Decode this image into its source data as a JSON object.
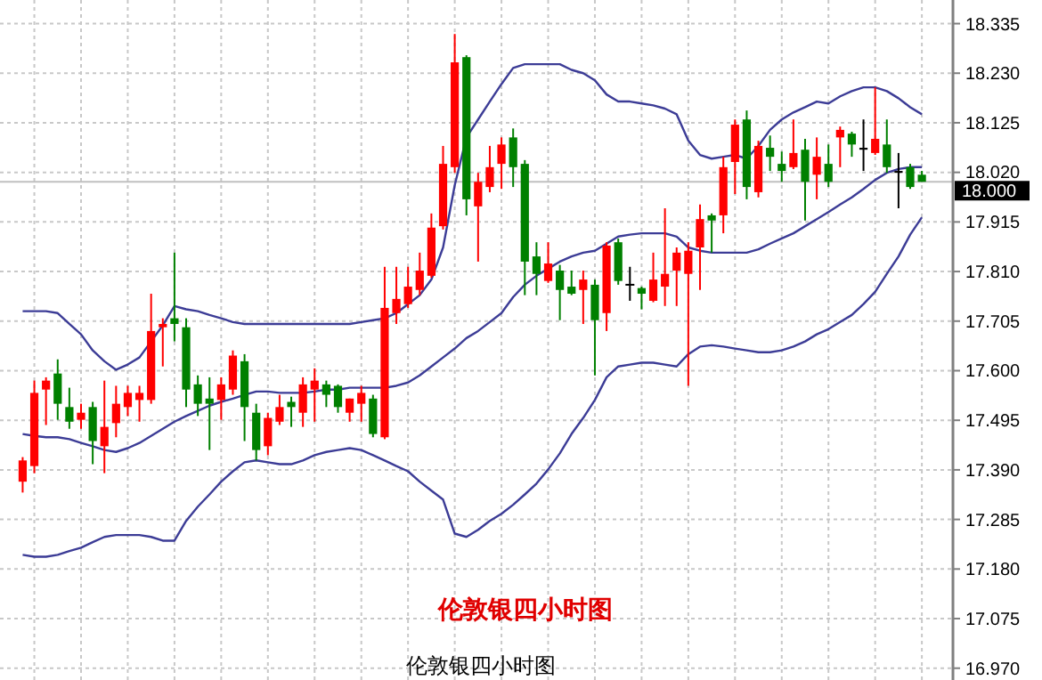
{
  "chart_data": {
    "type": "candlestick",
    "categories": [
      null,
      null,
      null,
      null,
      null,
      null,
      null,
      null,
      null,
      null,
      null,
      null,
      null,
      null,
      null,
      null,
      null,
      null,
      null,
      null,
      null,
      null,
      null,
      null,
      null,
      null,
      null,
      null,
      null,
      null,
      null,
      null,
      null,
      null,
      null,
      null,
      null,
      null,
      null,
      null,
      null,
      null,
      null,
      null,
      null,
      null,
      null,
      null,
      null,
      null,
      null,
      null,
      null,
      null,
      null,
      null,
      null,
      null,
      null,
      null,
      null,
      null,
      null,
      null,
      null,
      null,
      null,
      null,
      null,
      null,
      null,
      null,
      null,
      null,
      null,
      null,
      null,
      null
    ],
    "ohlc": [
      [
        17.365,
        17.417,
        17.342,
        17.41
      ],
      [
        17.398,
        17.579,
        17.383,
        17.553
      ],
      [
        17.56,
        17.586,
        17.485,
        17.579
      ],
      [
        17.594,
        17.624,
        17.496,
        17.53
      ],
      [
        17.523,
        17.564,
        17.477,
        17.492
      ],
      [
        17.496,
        17.53,
        17.477,
        17.511
      ],
      [
        17.523,
        17.534,
        17.402,
        17.451
      ],
      [
        17.44,
        17.579,
        17.383,
        17.481
      ],
      [
        17.489,
        17.568,
        17.459,
        17.53
      ],
      [
        17.523,
        17.568,
        17.504,
        17.553
      ],
      [
        17.538,
        17.568,
        17.492,
        17.553
      ],
      [
        17.538,
        17.763,
        17.53,
        17.684
      ],
      [
        17.692,
        17.711,
        17.609,
        17.699
      ],
      [
        17.711,
        17.85,
        17.662,
        17.699
      ],
      [
        17.692,
        17.711,
        17.523,
        17.56
      ],
      [
        17.571,
        17.59,
        17.504,
        17.53
      ],
      [
        17.541,
        17.586,
        17.432,
        17.53
      ],
      [
        17.538,
        17.586,
        17.496,
        17.571
      ],
      [
        17.56,
        17.643,
        17.549,
        17.632
      ],
      [
        17.62,
        17.635,
        17.451,
        17.523
      ],
      [
        17.511,
        17.53,
        17.41,
        17.432
      ],
      [
        17.44,
        17.511,
        17.421,
        17.5
      ],
      [
        17.492,
        17.549,
        17.485,
        17.523
      ],
      [
        17.534,
        17.545,
        17.481,
        17.523
      ],
      [
        17.511,
        17.586,
        17.481,
        17.571
      ],
      [
        17.56,
        17.605,
        17.492,
        17.579
      ],
      [
        17.571,
        17.579,
        17.523,
        17.549
      ],
      [
        17.568,
        17.571,
        17.511,
        17.523
      ],
      [
        17.511,
        17.541,
        17.492,
        17.541
      ],
      [
        17.53,
        17.568,
        17.492,
        17.553
      ],
      [
        17.541,
        17.549,
        17.459,
        17.466
      ],
      [
        17.459,
        17.82,
        17.455,
        17.733
      ],
      [
        17.722,
        17.82,
        17.699,
        17.752
      ],
      [
        17.741,
        17.82,
        17.733,
        17.778
      ],
      [
        17.771,
        17.85,
        17.76,
        17.812
      ],
      [
        17.801,
        17.933,
        17.797,
        17.903
      ],
      [
        17.906,
        18.076,
        17.899,
        18.038
      ],
      [
        18.031,
        18.313,
        18.019,
        18.253
      ],
      [
        18.264,
        18.268,
        17.929,
        17.963
      ],
      [
        17.948,
        18.019,
        17.831,
        18.0
      ],
      [
        17.989,
        18.076,
        17.978,
        18.031
      ],
      [
        18.038,
        18.094,
        17.985,
        18.079
      ],
      [
        18.094,
        18.113,
        17.989,
        18.031
      ],
      [
        18.038,
        18.046,
        17.76,
        17.831
      ],
      [
        17.842,
        17.872,
        17.76,
        17.805
      ],
      [
        17.79,
        17.872,
        17.786,
        17.827
      ],
      [
        17.812,
        17.824,
        17.707,
        17.771
      ],
      [
        17.778,
        17.812,
        17.76,
        17.763
      ],
      [
        17.771,
        17.812,
        17.699,
        17.793
      ],
      [
        17.782,
        17.793,
        17.59,
        17.707
      ],
      [
        17.722,
        17.872,
        17.684,
        17.865
      ],
      [
        17.872,
        17.88,
        17.782,
        17.79
      ],
      [
        17.782,
        17.82,
        17.748,
        17.782
      ],
      [
        17.775,
        17.778,
        17.73,
        17.763
      ],
      [
        17.748,
        17.85,
        17.745,
        17.793
      ],
      [
        17.778,
        17.944,
        17.737,
        17.805
      ],
      [
        17.812,
        17.861,
        17.737,
        17.85
      ],
      [
        17.805,
        17.872,
        17.568,
        17.854
      ],
      [
        17.861,
        17.952,
        17.771,
        17.921
      ],
      [
        17.929,
        17.933,
        17.85,
        17.918
      ],
      [
        17.929,
        18.053,
        17.891,
        18.031
      ],
      [
        18.042,
        18.132,
        17.974,
        18.121
      ],
      [
        18.132,
        18.151,
        17.963,
        17.989
      ],
      [
        17.978,
        18.087,
        17.967,
        18.076
      ],
      [
        18.072,
        18.098,
        18.023,
        18.053
      ],
      [
        18.038,
        18.064,
        18.0,
        18.023
      ],
      [
        18.031,
        18.132,
        18.027,
        18.061
      ],
      [
        18.068,
        18.091,
        17.918,
        18.0
      ],
      [
        18.015,
        18.094,
        17.963,
        18.053
      ],
      [
        18.038,
        18.079,
        17.989,
        18.0
      ],
      [
        18.094,
        18.117,
        18.031,
        18.11
      ],
      [
        18.102,
        18.106,
        18.053,
        18.079
      ],
      [
        18.072,
        18.132,
        18.023,
        18.068
      ],
      [
        18.061,
        18.2,
        18.057,
        18.091
      ],
      [
        18.079,
        18.132,
        18.019,
        18.031
      ],
      [
        18.023,
        18.061,
        17.944,
        18.019
      ],
      [
        18.031,
        18.038,
        17.985,
        17.989
      ],
      [
        18.015,
        18.023,
        18.0,
        18.0
      ]
    ],
    "colors": [
      "#ff0000",
      "#ff0000",
      "#ff0000",
      "#008000",
      "#008000",
      "#ff0000",
      "#008000",
      "#ff0000",
      "#ff0000",
      "#ff0000",
      "#ff0000",
      "#ff0000",
      "#ff0000",
      "#008000",
      "#008000",
      "#008000",
      "#008000",
      "#ff0000",
      "#ff0000",
      "#008000",
      "#008000",
      "#ff0000",
      "#ff0000",
      "#008000",
      "#ff0000",
      "#ff0000",
      "#008000",
      "#008000",
      "#ff0000",
      "#ff0000",
      "#008000",
      "#ff0000",
      "#ff0000",
      "#ff0000",
      "#ff0000",
      "#ff0000",
      "#ff0000",
      "#ff0000",
      "#008000",
      "#ff0000",
      "#ff0000",
      "#ff0000",
      "#008000",
      "#008000",
      "#008000",
      "#ff0000",
      "#008000",
      "#008000",
      "#ff0000",
      "#008000",
      "#ff0000",
      "#008000",
      "#000000",
      "#008000",
      "#ff0000",
      "#ff0000",
      "#ff0000",
      "#ff0000",
      "#ff0000",
      "#008000",
      "#ff0000",
      "#ff0000",
      "#008000",
      "#ff0000",
      "#008000",
      "#008000",
      "#ff0000",
      "#008000",
      "#ff0000",
      "#008000",
      "#ff0000",
      "#008000",
      "#000000",
      "#ff0000",
      "#008000",
      "#000000",
      "#008000",
      "#008000"
    ],
    "series": [
      {
        "type": "line",
        "color": "#3c3c96",
        "values": [
          17.726,
          17.726,
          17.726,
          17.722,
          17.699,
          17.677,
          17.643,
          17.62,
          17.602,
          17.613,
          17.628,
          17.662,
          17.696,
          17.737,
          17.73,
          17.726,
          17.718,
          17.711,
          17.703,
          17.699,
          17.699,
          17.699,
          17.699,
          17.699,
          17.699,
          17.699,
          17.699,
          17.699,
          17.699,
          17.703,
          17.707,
          17.711,
          17.722,
          17.741,
          17.76,
          17.793,
          17.861,
          17.993,
          18.094,
          18.132,
          18.17,
          18.207,
          18.241,
          18.249,
          18.249,
          18.249,
          18.249,
          18.237,
          18.23,
          18.215,
          18.185,
          18.17,
          18.17,
          18.166,
          18.162,
          18.155,
          18.143,
          18.087,
          18.057,
          18.049,
          18.053,
          18.057,
          18.049,
          18.076,
          18.11,
          18.132,
          18.147,
          18.158,
          18.17,
          18.166,
          18.181,
          18.192,
          18.2,
          18.2,
          18.192,
          18.177,
          18.158,
          18.143
        ]
      },
      {
        "type": "line",
        "color": "#3c3c96",
        "values": [
          17.466,
          17.462,
          17.459,
          17.459,
          17.455,
          17.447,
          17.44,
          17.432,
          17.428,
          17.436,
          17.447,
          17.462,
          17.477,
          17.492,
          17.504,
          17.515,
          17.526,
          17.534,
          17.541,
          17.549,
          17.556,
          17.556,
          17.553,
          17.553,
          17.553,
          17.556,
          17.56,
          17.56,
          17.564,
          17.564,
          17.564,
          17.564,
          17.568,
          17.575,
          17.59,
          17.609,
          17.628,
          17.647,
          17.669,
          17.684,
          17.703,
          17.722,
          17.756,
          17.782,
          17.801,
          17.816,
          17.831,
          17.842,
          17.85,
          17.854,
          17.869,
          17.884,
          17.888,
          17.891,
          17.891,
          17.891,
          17.884,
          17.861,
          17.854,
          17.85,
          17.85,
          17.85,
          17.85,
          17.857,
          17.869,
          17.88,
          17.891,
          17.906,
          17.921,
          17.936,
          17.952,
          17.967,
          17.985,
          18.004,
          18.019,
          18.027,
          18.031,
          18.031
        ]
      },
      {
        "type": "line",
        "color": "#3c3c96",
        "values": [
          17.21,
          17.206,
          17.206,
          17.21,
          17.218,
          17.225,
          17.237,
          17.248,
          17.252,
          17.252,
          17.252,
          17.248,
          17.24,
          17.24,
          17.282,
          17.312,
          17.338,
          17.365,
          17.387,
          17.406,
          17.41,
          17.406,
          17.402,
          17.402,
          17.41,
          17.421,
          17.428,
          17.432,
          17.436,
          17.432,
          17.421,
          17.41,
          17.398,
          17.387,
          17.365,
          17.346,
          17.327,
          17.255,
          17.248,
          17.263,
          17.282,
          17.297,
          17.316,
          17.338,
          17.361,
          17.391,
          17.425,
          17.466,
          17.5,
          17.538,
          17.586,
          17.609,
          17.613,
          17.617,
          17.617,
          17.613,
          17.609,
          17.635,
          17.651,
          17.654,
          17.651,
          17.647,
          17.643,
          17.639,
          17.639,
          17.643,
          17.651,
          17.662,
          17.677,
          17.688,
          17.703,
          17.718,
          17.741,
          17.767,
          17.805,
          17.842,
          17.888,
          17.925
        ]
      }
    ],
    "ylim": [
      16.945,
      18.385
    ],
    "yticks": [
      {
        "value": 16.97,
        "label": "16.970"
      },
      17.075,
      {
        "value": 17.18,
        "label": "17.180"
      },
      17.285,
      {
        "value": 17.39,
        "label": "17.390"
      },
      17.495,
      {
        "value": 17.6,
        "label": "17.600"
      },
      17.705,
      {
        "value": 17.81,
        "label": "17.810"
      },
      17.915,
      {
        "value": 18.02,
        "label": "18.020"
      },
      18.125,
      {
        "value": 18.23,
        "label": "18.230"
      },
      18.335
    ],
    "tick_labels": "y",
    "grid": true,
    "ref_lines": [
      {
        "axis": "y",
        "value": 18.0,
        "label": "18.000",
        "color": "#c0c0c0"
      }
    ],
    "annotations": [
      "伦敦银四小时图",
      "伦敦银四小时图"
    ]
  }
}
